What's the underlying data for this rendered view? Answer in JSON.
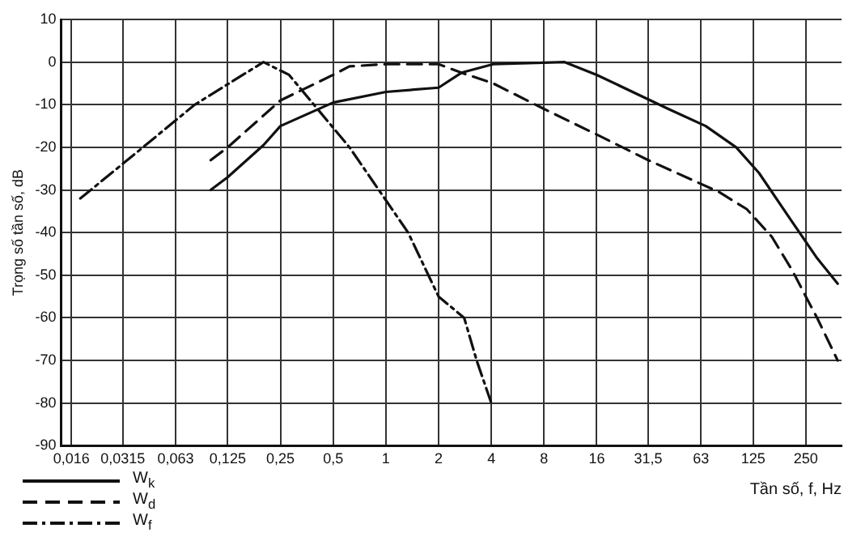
{
  "chart_data": {
    "type": "line",
    "ylabel": "Trọng số tần số, dB",
    "xlabel": "Tần số, f, Hz",
    "log": "x",
    "grid": true,
    "legend": "bottom left",
    "marker": "none",
    "xlim": [
      0.014,
      400
    ],
    "ylim": [
      -90,
      10
    ],
    "xticks": [
      {
        "value": 0.016,
        "label": "0,016"
      },
      {
        "value": 0.0315,
        "label": "0,0315"
      },
      {
        "value": 0.063,
        "label": "0,063"
      },
      {
        "value": 0.125,
        "label": "0,125"
      },
      {
        "value": 0.25,
        "label": "0,25"
      },
      {
        "value": 0.5,
        "label": "0,5"
      },
      1,
      2,
      4,
      8,
      16,
      {
        "value": 31.5,
        "label": "31,5"
      },
      63,
      125,
      250
    ],
    "yticks": [
      10,
      0,
      -10,
      -20,
      -30,
      -40,
      -50,
      -60,
      -70,
      -80,
      -90
    ],
    "series": [
      {
        "name": "W$_{k}$",
        "color": "#111111",
        "line_style": "solid",
        "x": [
          0.1,
          0.125,
          0.2,
          0.25,
          0.5,
          1,
          2,
          2.7,
          4.1,
          10.5,
          16,
          41,
          67,
          100,
          135,
          205,
          290,
          380
        ],
        "values": [
          -30,
          -27,
          -19.5,
          -15,
          -9.5,
          -7,
          -6,
          -2.5,
          -0.5,
          0,
          -3,
          -11,
          -15,
          -20,
          -26,
          -37,
          -46,
          -52
        ]
      },
      {
        "name": "W$_{d}$",
        "color": "#111111",
        "line_style": "dashed",
        "x": [
          0.1,
          0.125,
          0.25,
          0.5,
          0.62,
          1,
          2,
          2.7,
          4.1,
          8,
          16,
          31.5,
          80,
          115,
          160,
          210,
          250,
          290,
          380
        ],
        "values": [
          -23,
          -20,
          -9,
          -3,
          -1,
          -0.5,
          -0.5,
          -2.5,
          -5,
          -11,
          -17,
          -23,
          -30.5,
          -34.5,
          -41,
          -49,
          -55,
          -60,
          -70
        ]
      },
      {
        "name": "W$_{f}$",
        "color": "#111111",
        "line_style": "dashdot",
        "x": [
          0.018,
          0.041,
          0.081,
          0.2,
          0.28,
          0.62,
          1.34,
          2,
          2.8,
          3.3,
          4
        ],
        "values": [
          -32,
          -20,
          -10,
          0,
          -3,
          -20,
          -40,
          -55,
          -60,
          -70,
          -80
        ]
      }
    ]
  }
}
